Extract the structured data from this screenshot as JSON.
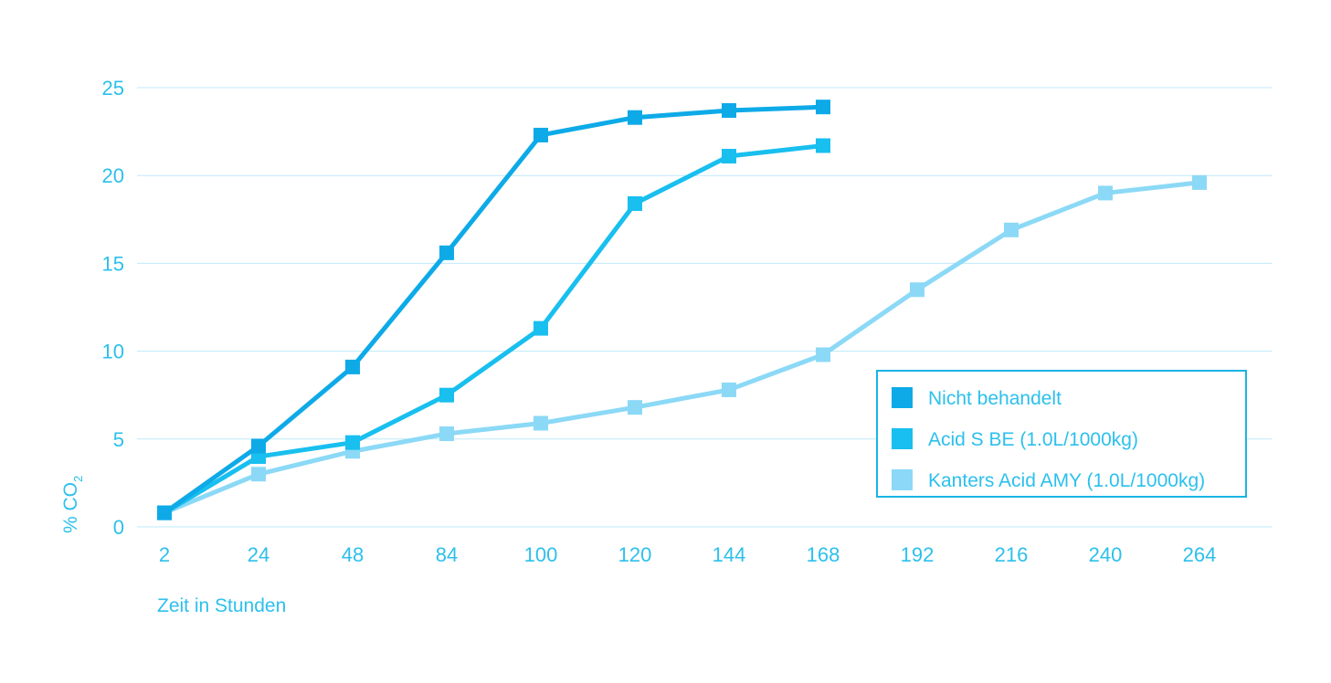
{
  "chart_data": {
    "type": "line",
    "categories": [
      "2",
      "24",
      "48",
      "84",
      "100",
      "120",
      "144",
      "168",
      "192",
      "216",
      "240",
      "264"
    ],
    "xlabel": "Zeit in Stunden",
    "ylabel": "% CO",
    "ylabel_sub": "2",
    "ylim": [
      0,
      25
    ],
    "yticks": [
      "0",
      "5",
      "10",
      "15",
      "20",
      "25"
    ],
    "grid": "horizontal",
    "legend": "right",
    "series": [
      {
        "name": "Nicht behandelt",
        "color": "#0eaae8",
        "values": [
          0.8,
          4.6,
          9.1,
          15.6,
          22.3,
          23.3,
          23.7,
          23.9,
          null,
          null,
          null,
          null
        ]
      },
      {
        "name": "Acid S BE (1.0L/1000kg)",
        "color": "#18bfef",
        "values": [
          0.8,
          4.0,
          4.8,
          7.5,
          11.3,
          18.4,
          21.1,
          21.7,
          null,
          null,
          null,
          null
        ]
      },
      {
        "name": "Kanters Acid AMY (1.0L/1000kg)",
        "color": "#8bd9f6",
        "values": [
          0.8,
          3.0,
          4.3,
          5.3,
          5.9,
          6.8,
          7.8,
          9.8,
          13.5,
          16.9,
          19.0,
          19.6
        ]
      }
    ]
  }
}
